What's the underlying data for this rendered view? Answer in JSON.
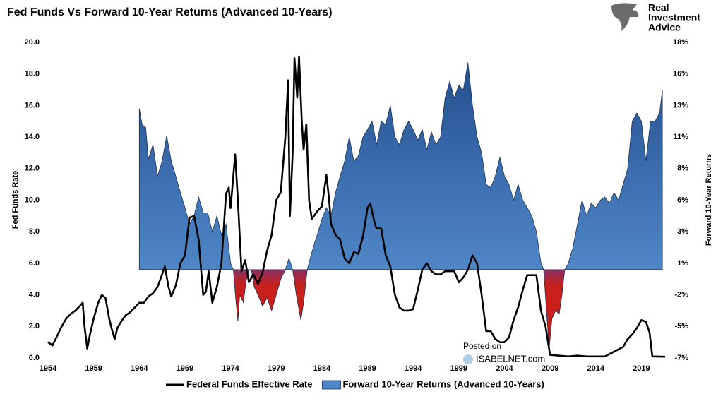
{
  "chart_data": {
    "type": "line_area",
    "title": "Fed Funds Vs Forward 10-Year Returns (Advanced 10-Years)",
    "y_label": "Fed Funds Rate",
    "y2_label": "Forward 10-Year Returns",
    "logo_text": [
      "Real",
      "Investment",
      "Advice"
    ],
    "watermark": [
      "Posted on",
      "ISABELNET.com"
    ],
    "xlim": [
      1954,
      2021.6
    ],
    "xticks": [
      1954,
      1959,
      1964,
      1969,
      1974,
      1979,
      1984,
      1989,
      1994,
      1999,
      2004,
      2009,
      2014,
      2019
    ],
    "ylim": [
      0,
      20
    ],
    "yticks": [
      {
        "value": 0,
        "label": "0.0"
      },
      {
        "value": 2,
        "label": "2.0"
      },
      {
        "value": 4,
        "label": "4.0"
      },
      {
        "value": 6,
        "label": "6.0"
      },
      {
        "value": 8,
        "label": "8.0"
      },
      {
        "value": 10,
        "label": "10.0"
      },
      {
        "value": 12,
        "label": "12.0"
      },
      {
        "value": 14,
        "label": "14.0"
      },
      {
        "value": 16,
        "label": "16.0"
      },
      {
        "value": 18,
        "label": "18.0"
      },
      {
        "value": 20,
        "label": "20.0"
      }
    ],
    "y2lim": [
      -7,
      18
    ],
    "y2ticks": [
      {
        "value": -7,
        "label": "-7%"
      },
      {
        "value": -4.5,
        "label": "-5%"
      },
      {
        "value": -2,
        "label": "-2%"
      },
      {
        "value": 0.5,
        "label": "1%"
      },
      {
        "value": 3,
        "label": "3%"
      },
      {
        "value": 5.5,
        "label": "6%"
      },
      {
        "value": 8,
        "label": "8%"
      },
      {
        "value": 10.5,
        "label": "11%"
      },
      {
        "value": 13,
        "label": "13%"
      },
      {
        "value": 15.5,
        "label": "16%"
      },
      {
        "value": 18,
        "label": "18%"
      }
    ],
    "grid": false,
    "legend": "bottom",
    "series": [
      {
        "name": "Federal Funds Effective Rate",
        "type": "line",
        "color": "#000000",
        "x": [
          1954,
          1954.5,
          1955,
          1955.5,
          1956,
          1956.5,
          1957,
          1957.5,
          1957.8,
          1958,
          1958.3,
          1958.6,
          1959,
          1959.5,
          1959.9,
          1960.3,
          1960.7,
          1961,
          1961.3,
          1961.6,
          1962,
          1962.5,
          1963,
          1963.5,
          1964,
          1964.5,
          1965,
          1965.5,
          1966,
          1966.5,
          1966.8,
          1967.2,
          1967.5,
          1968,
          1968.5,
          1969,
          1969.5,
          1970,
          1970.5,
          1971,
          1971.3,
          1971.6,
          1972,
          1972.5,
          1973,
          1973.5,
          1973.8,
          1974,
          1974.5,
          1974.8,
          1975.2,
          1975.6,
          1976,
          1976.5,
          1977,
          1977.5,
          1978,
          1978.5,
          1979,
          1979.5,
          1980,
          1980.3,
          1980.5,
          1980.8,
          1981,
          1981.3,
          1981.5,
          1981.8,
          1982,
          1982.3,
          1982.6,
          1982.9,
          1983.5,
          1984,
          1984.5,
          1984.8,
          1985,
          1985.5,
          1986,
          1986.5,
          1987,
          1987.5,
          1988,
          1988.5,
          1989,
          1989.3,
          1989.8,
          1990,
          1990.5,
          1991,
          1991.5,
          1992,
          1992.5,
          1993,
          1993.5,
          1994,
          1994.5,
          1995,
          1995.5,
          1996,
          1996.5,
          1997,
          1997.5,
          1998,
          1998.5,
          1999,
          1999.5,
          2000,
          2000.5,
          2001,
          2001.5,
          2002,
          2002.5,
          2003,
          2003.5,
          2004,
          2004.5,
          2005,
          2005.5,
          2006,
          2006.5,
          2007,
          2007.5,
          2008,
          2008.5,
          2009,
          2010,
          2011,
          2012,
          2013,
          2014,
          2015,
          2016,
          2017,
          2017.5,
          2018,
          2018.5,
          2019,
          2019.5,
          2019.9,
          2020.2,
          2021.6
        ],
        "values": [
          1.0,
          0.8,
          1.4,
          2.0,
          2.5,
          2.8,
          3.0,
          3.3,
          3.5,
          2.0,
          0.6,
          1.5,
          2.5,
          3.5,
          4.0,
          3.8,
          2.5,
          1.8,
          1.2,
          1.9,
          2.3,
          2.7,
          2.9,
          3.2,
          3.5,
          3.5,
          3.9,
          4.1,
          4.5,
          5.3,
          5.8,
          4.5,
          3.9,
          4.6,
          6.0,
          6.5,
          8.9,
          9.0,
          7.5,
          4.0,
          4.2,
          5.5,
          3.5,
          4.5,
          6.0,
          10.4,
          10.8,
          9.5,
          12.9,
          10.0,
          5.5,
          6.2,
          4.8,
          5.3,
          4.7,
          5.4,
          6.8,
          7.8,
          10.0,
          10.5,
          14.0,
          17.6,
          9.0,
          13.0,
          19.0,
          16.5,
          19.1,
          15.0,
          13.2,
          14.8,
          10.0,
          8.8,
          9.3,
          9.6,
          11.6,
          10.0,
          8.5,
          7.8,
          7.5,
          6.3,
          6.0,
          6.7,
          6.6,
          7.7,
          9.5,
          9.8,
          8.5,
          8.2,
          8.2,
          6.5,
          5.8,
          4.0,
          3.2,
          3.0,
          3.0,
          3.1,
          4.3,
          5.6,
          6.0,
          5.5,
          5.3,
          5.3,
          5.5,
          5.5,
          5.5,
          4.8,
          5.1,
          5.6,
          6.5,
          6.0,
          4.0,
          1.7,
          1.7,
          1.2,
          1.0,
          1.0,
          1.3,
          2.4,
          3.2,
          4.3,
          5.25,
          5.25,
          5.25,
          3.0,
          2.0,
          0.2,
          0.15,
          0.1,
          0.15,
          0.1,
          0.1,
          0.1,
          0.4,
          0.7,
          1.2,
          1.5,
          1.9,
          2.4,
          2.3,
          1.6,
          0.1,
          0.08
        ]
      },
      {
        "name": "Forward 10-Year Returns (Advanced 10-Years)",
        "type": "area",
        "axis": "y2",
        "color": "#4f86c6",
        "negative_color": "#c8201a",
        "x": [
          1964,
          1964.3,
          1964.7,
          1965,
          1965.5,
          1966,
          1966.5,
          1967,
          1967.5,
          1968,
          1968.5,
          1969,
          1969.5,
          1970,
          1970.5,
          1971,
          1971.5,
          1972,
          1972.5,
          1973,
          1973.5,
          1974,
          1974.3,
          1974.6,
          1974.8,
          1975,
          1975.4,
          1975.7,
          1976,
          1976.3,
          1976.6,
          1977,
          1977.5,
          1978,
          1978.5,
          1979,
          1979.5,
          1980,
          1980.4,
          1980.8,
          1981.2,
          1981.7,
          1982,
          1982.4,
          1982.8,
          1983.2,
          1983.6,
          1984,
          1984.5,
          1985,
          1985.5,
          1986,
          1986.5,
          1987,
          1987.5,
          1988,
          1988.5,
          1989,
          1989.5,
          1990,
          1990.5,
          1991,
          1991.5,
          1992,
          1992.5,
          1993,
          1993.5,
          1994,
          1994.5,
          1995,
          1995.5,
          1996,
          1996.5,
          1997,
          1997.5,
          1998,
          1998.5,
          1999,
          1999.5,
          2000,
          2000.5,
          2001,
          2001.5,
          2002,
          2002.5,
          2003,
          2003.5,
          2004,
          2004.5,
          2005,
          2005.5,
          2006,
          2006.5,
          2007,
          2007.5,
          2008,
          2008.3,
          2008.6,
          2008.9,
          2009.2,
          2009.6,
          2010,
          2010.3,
          2010.6,
          2011,
          2011.5,
          2012,
          2012.5,
          2013,
          2013.5,
          2014,
          2014.5,
          2015,
          2015.5,
          2016,
          2016.5,
          2017,
          2017.5,
          2018,
          2018.5,
          2019,
          2019.5,
          2020,
          2020.5,
          2021,
          2021.3
        ],
        "values": [
          12.75,
          11.5,
          11.25,
          8.75,
          9.9,
          7.4,
          8.6,
          10.6,
          8.6,
          7.4,
          6.1,
          4.9,
          3.6,
          4.25,
          5.75,
          4.5,
          4.5,
          3.0,
          4.25,
          2.75,
          3.6,
          0.5,
          0,
          -2.6,
          -4.1,
          -2,
          -2.6,
          -0.9,
          0,
          -0.1,
          -1.4,
          -2,
          -2.9,
          -2.25,
          -3.25,
          -2,
          -0.75,
          0,
          0.9,
          0,
          -2,
          -4,
          -2.6,
          0,
          1.1,
          2.1,
          3,
          4,
          4.9,
          4.25,
          6.1,
          7.4,
          8.6,
          10.5,
          8.6,
          9,
          10.5,
          11.1,
          11.75,
          9.9,
          11.75,
          11.5,
          13,
          10.5,
          9.9,
          11.1,
          11.75,
          11.1,
          10.25,
          11.1,
          9.5,
          10.9,
          9.9,
          10.5,
          13.6,
          14.9,
          13.6,
          14.6,
          14.25,
          16.4,
          13,
          10.5,
          9.25,
          6.75,
          6.5,
          7.4,
          8.9,
          7.4,
          6.75,
          5.5,
          6.75,
          5.5,
          4.9,
          4.25,
          3,
          0.5,
          0,
          -3.25,
          -6.25,
          -3.9,
          -3.25,
          -3.5,
          -2,
          0,
          0.5,
          1.75,
          3.6,
          5.5,
          4.25,
          5.25,
          4.9,
          5.5,
          5.75,
          5.25,
          6.1,
          5.5,
          6.75,
          8,
          11.75,
          12.4,
          11.75,
          8.6,
          11.75,
          11.75,
          12.4,
          14.25
        ]
      }
    ]
  }
}
